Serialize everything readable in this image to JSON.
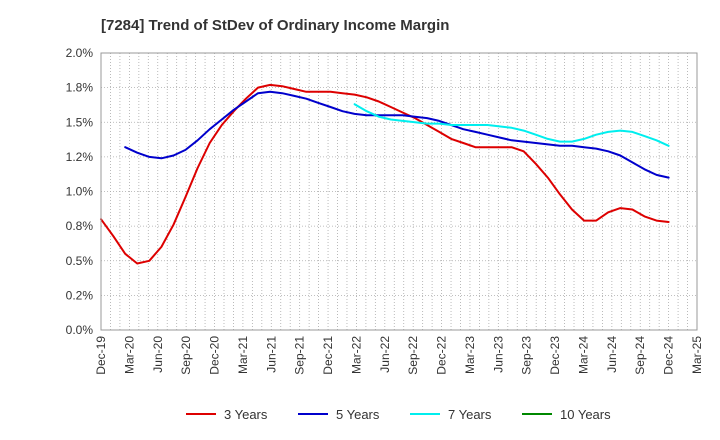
{
  "chart_data": {
    "type": "line",
    "title": "[7284]  Trend of StDev of Ordinary Income Margin",
    "xlabel": "",
    "ylabel": "",
    "ylim": [
      0,
      2.0
    ],
    "y_ticks": [
      "0.0%",
      "0.2%",
      "0.5%",
      "0.8%",
      "1.0%",
      "1.2%",
      "1.5%",
      "1.8%",
      "2.0%"
    ],
    "y_tick_values": [
      0,
      0.25,
      0.5,
      0.75,
      1.0,
      1.25,
      1.5,
      1.75,
      2.0
    ],
    "x_ticks": [
      "Dec-19",
      "Mar-20",
      "Jun-20",
      "Sep-20",
      "Dec-20",
      "Mar-21",
      "Jun-21",
      "Sep-21",
      "Dec-21",
      "Mar-22",
      "Jun-22",
      "Sep-22",
      "Dec-22",
      "Mar-23",
      "Jun-23",
      "Sep-23",
      "Dec-23",
      "Mar-24",
      "Jun-24",
      "Sep-24",
      "Dec-24",
      "Mar-25"
    ],
    "grid": true,
    "legend_position": "bottom",
    "series": [
      {
        "name": "3 Years",
        "color": "#dd0000",
        "values": [
          0.8,
          0.68,
          0.55,
          0.48,
          0.5,
          0.6,
          0.76,
          0.96,
          1.17,
          1.35,
          1.48,
          1.58,
          1.67,
          1.75,
          1.77,
          1.76,
          1.74,
          1.72,
          1.72,
          1.72,
          1.71,
          1.7,
          1.68,
          1.65,
          1.61,
          1.57,
          1.53,
          1.48,
          1.43,
          1.38,
          1.35,
          1.32,
          1.32,
          1.32,
          1.32,
          1.29,
          1.2,
          1.1,
          0.98,
          0.87,
          0.79,
          0.79,
          0.85,
          0.88,
          0.87,
          0.82,
          0.79,
          0.78
        ]
      },
      {
        "name": "5 Years",
        "color": "#0000cc",
        "values": [
          null,
          null,
          1.32,
          1.28,
          1.25,
          1.24,
          1.26,
          1.3,
          1.37,
          1.45,
          1.52,
          1.59,
          1.65,
          1.71,
          1.72,
          1.71,
          1.69,
          1.67,
          1.64,
          1.61,
          1.58,
          1.56,
          1.55,
          1.55,
          1.55,
          1.55,
          1.54,
          1.53,
          1.51,
          1.48,
          1.45,
          1.43,
          1.41,
          1.39,
          1.37,
          1.36,
          1.35,
          1.34,
          1.33,
          1.33,
          1.32,
          1.31,
          1.29,
          1.26,
          1.21,
          1.16,
          1.12,
          1.1
        ]
      },
      {
        "name": "7 Years",
        "color": "#00eeee",
        "values": [
          null,
          null,
          null,
          null,
          null,
          null,
          null,
          null,
          null,
          null,
          null,
          null,
          null,
          null,
          null,
          null,
          null,
          null,
          null,
          null,
          null,
          1.63,
          1.58,
          1.54,
          1.52,
          1.51,
          1.5,
          1.49,
          1.49,
          1.48,
          1.48,
          1.48,
          1.48,
          1.47,
          1.46,
          1.44,
          1.41,
          1.38,
          1.36,
          1.36,
          1.38,
          1.41,
          1.43,
          1.44,
          1.43,
          1.4,
          1.37,
          1.33
        ]
      },
      {
        "name": "10 Years",
        "color": "#008800",
        "values": []
      }
    ]
  }
}
